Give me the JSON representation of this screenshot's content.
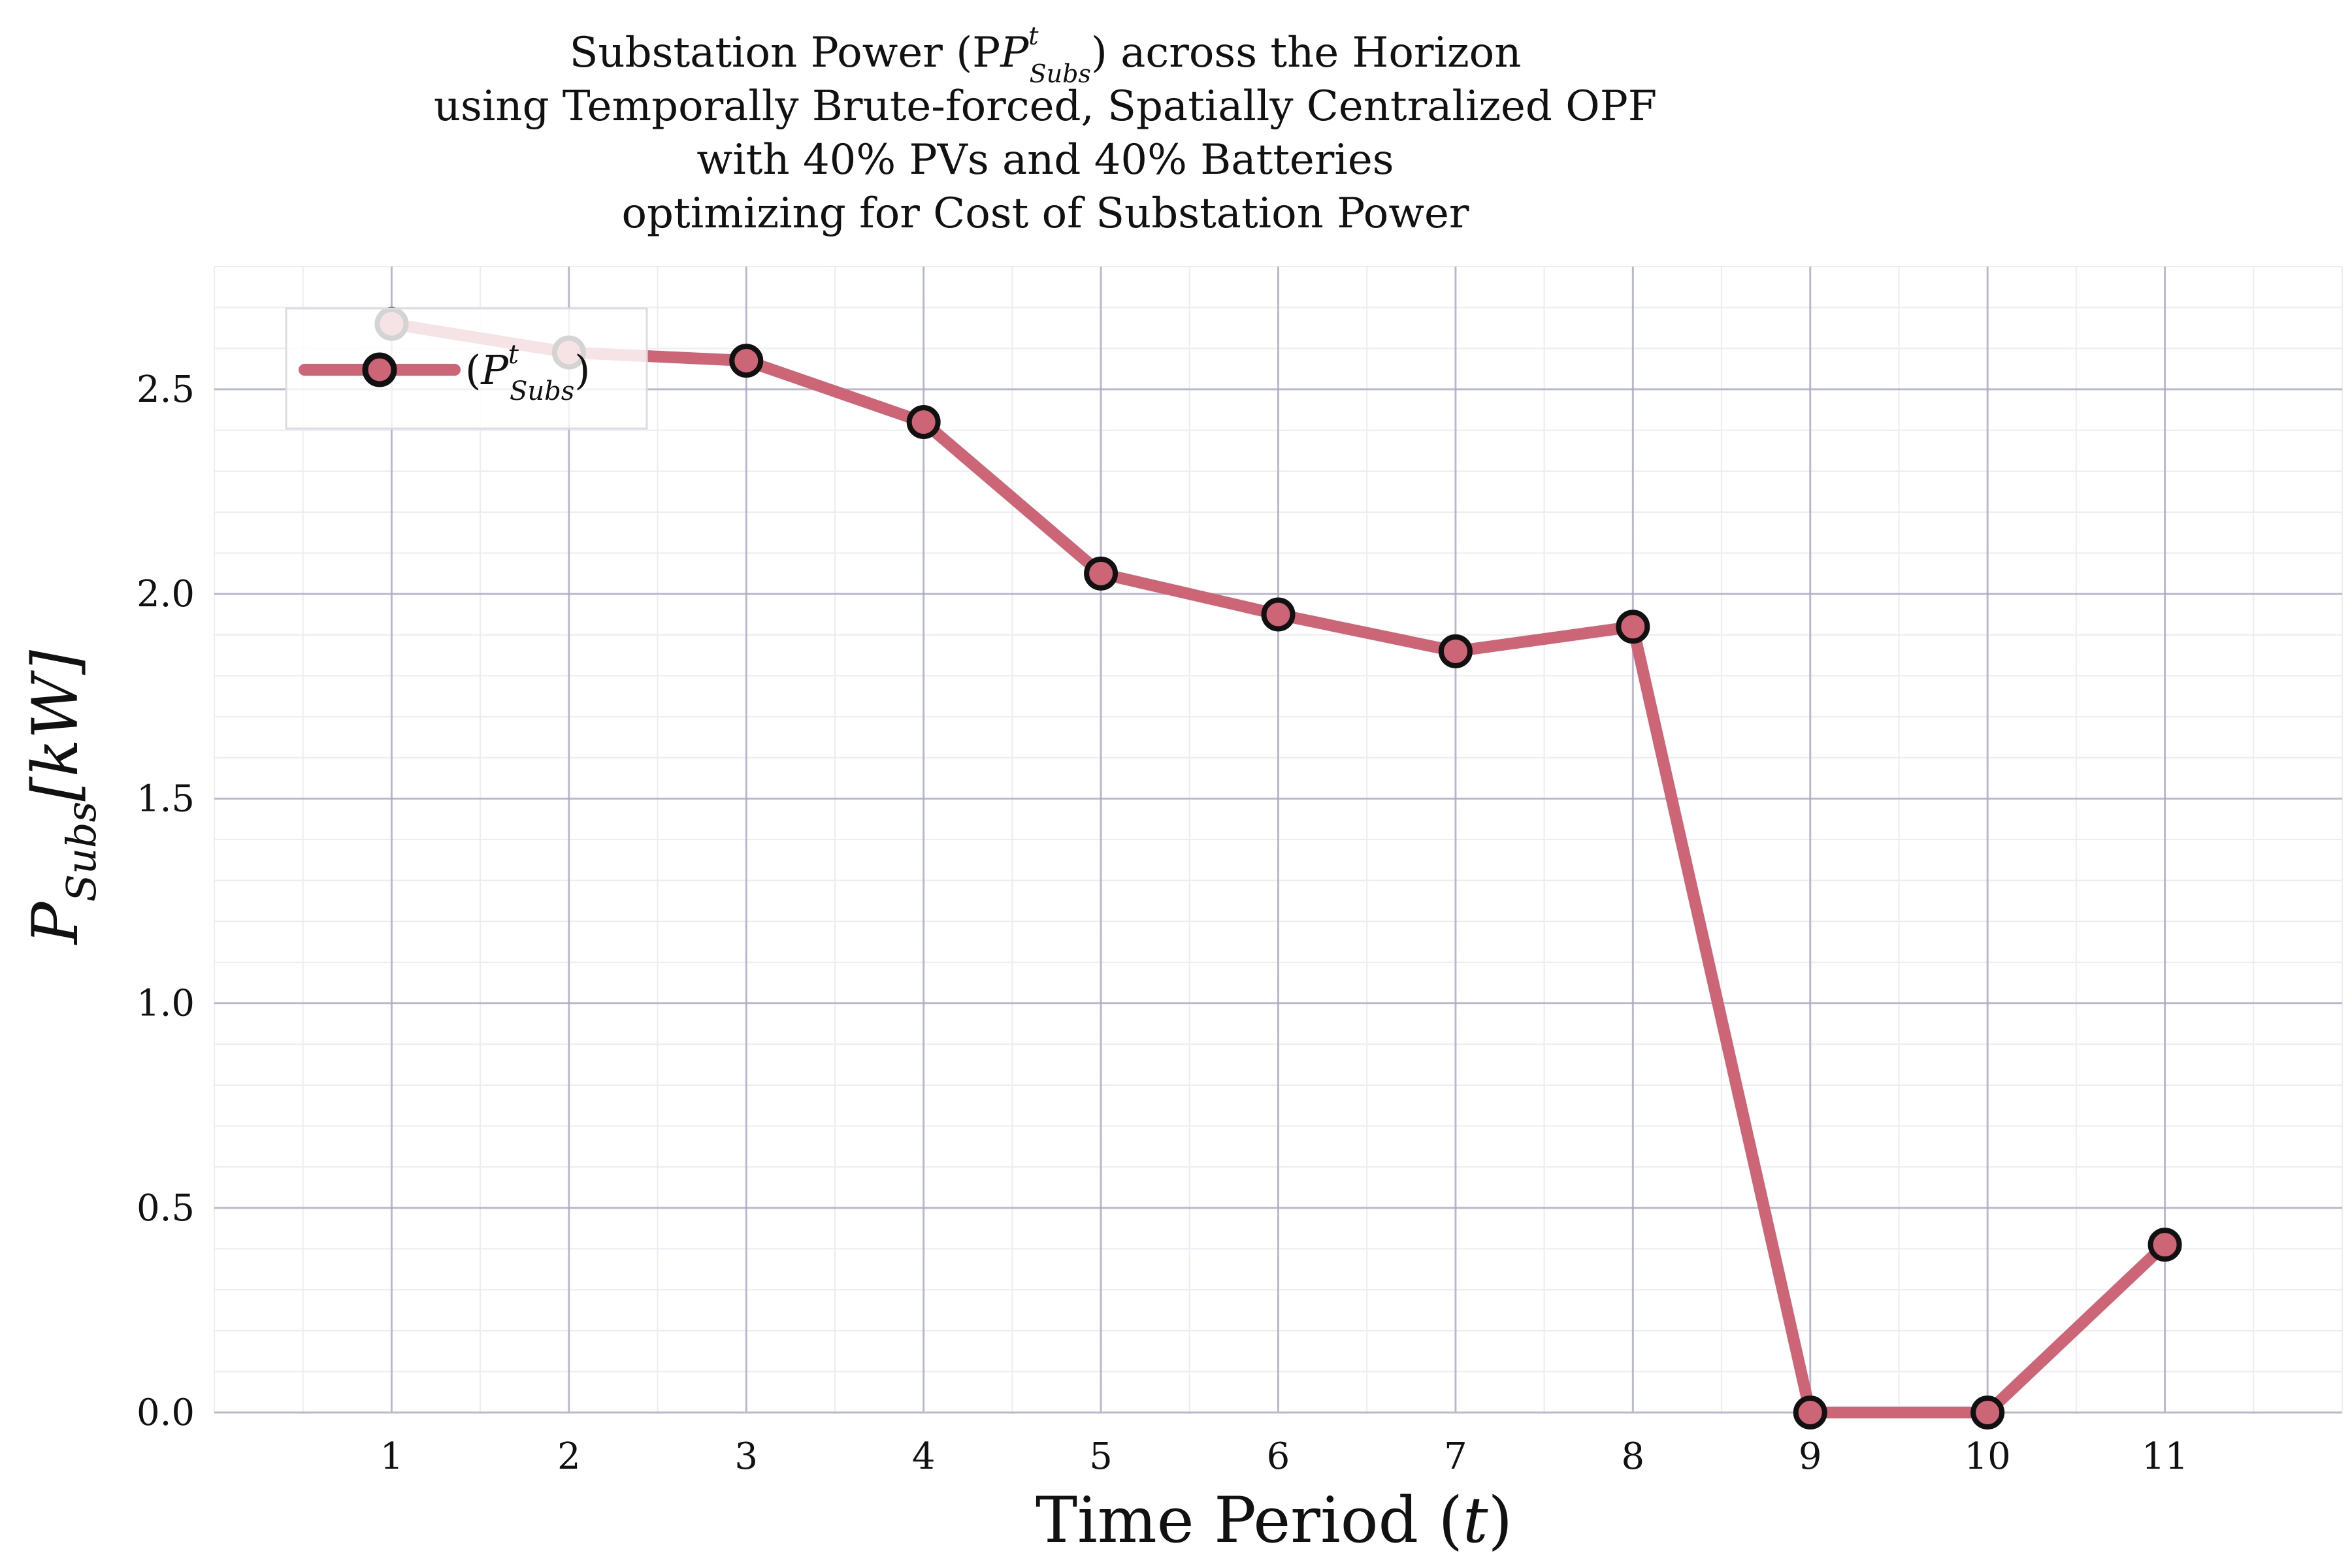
{
  "chart_data": {
    "type": "line",
    "title_lines": [
      "Substation Power (P",
      "using Temporally Brute-forced, Spatially Centralized OPF",
      "with 40% PVs and 40% Batteries",
      "optimizing for Cost of Substation Power"
    ],
    "title_tail": ") across the Horizon",
    "math_main": "P",
    "math_sub": "Subs",
    "math_sup": "t",
    "xlabel_main": "Time Period (",
    "xlabel_var": "t",
    "xlabel_tail": ")",
    "ylabel_var": "P",
    "ylabel_sub": "Subs",
    "ylabel_unit": "[kW]",
    "legend_open": "(",
    "legend_close": ")",
    "x": [
      1,
      2,
      3,
      4,
      5,
      6,
      7,
      8,
      9,
      10,
      11
    ],
    "series": [
      {
        "values": [
          2.66,
          2.59,
          2.57,
          2.42,
          2.05,
          1.95,
          1.86,
          1.92,
          0.0,
          0.0,
          0.41
        ],
        "color": "#cc6677",
        "marker_edge": "#111111"
      }
    ],
    "xlim": [
      0.0,
      12.0
    ],
    "ylim": [
      0.0,
      2.8
    ],
    "xticks": [
      "1",
      "2",
      "3",
      "4",
      "5",
      "6",
      "7",
      "8",
      "9",
      "10",
      "11"
    ],
    "yticks": [
      "0.0",
      "0.5",
      "1.0",
      "1.5",
      "2.0",
      "2.5"
    ],
    "ytick_values": [
      0.0,
      0.5,
      1.0,
      1.5,
      2.0,
      2.5
    ],
    "grid": true,
    "legend_position": "top-left",
    "colors": {
      "major_grid": "#a7a7bd",
      "minor_grid": "#ececf2"
    }
  }
}
